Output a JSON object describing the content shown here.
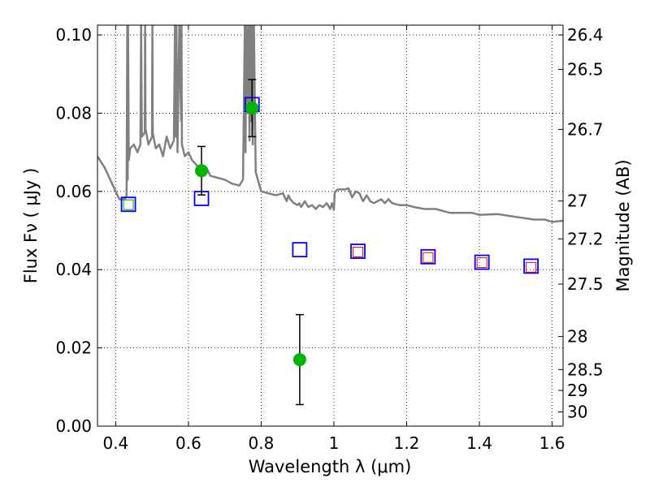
{
  "chart_data": {
    "type": "scatter",
    "xlabel": "Wavelength  λ (μm)",
    "ylabel": "Flux  Fν  ( μJy )",
    "y2label": "Magnitude (AB)",
    "xlim": [
      0.35,
      1.63
    ],
    "ylim": [
      0.0,
      0.1025
    ],
    "grid": true,
    "x_ticks": [
      0.4,
      0.6,
      0.8,
      1.0,
      1.2,
      1.4,
      1.6
    ],
    "x_tick_labels": [
      "0.4",
      "0.6",
      "0.8",
      "1",
      "1.2",
      "1.4",
      "1.6"
    ],
    "y_ticks": [
      0.0,
      0.02,
      0.04,
      0.06,
      0.08,
      0.1
    ],
    "y_tick_labels": [
      "0.00",
      "0.02",
      "0.04",
      "0.06",
      "0.08",
      "0.10"
    ],
    "mag_ticks": [
      {
        "label": "26.4",
        "mag": 26.4
      },
      {
        "label": "26.5",
        "mag": 26.5
      },
      {
        "label": "26.7",
        "mag": 26.7
      },
      {
        "label": "27",
        "mag": 27.0
      },
      {
        "label": "27.2",
        "mag": 27.2
      },
      {
        "label": "27.5",
        "mag": 27.5
      },
      {
        "label": "28",
        "mag": 28.0
      },
      {
        "label": "28.5",
        "mag": 28.5
      },
      {
        "label": "29",
        "mag": 29.0
      },
      {
        "label": "30",
        "mag": 30.0
      }
    ],
    "series": [
      {
        "marker": "line",
        "color": "#808080",
        "x": [
          0.35,
          0.37,
          0.39,
          0.41,
          0.425,
          0.43,
          0.432,
          0.433,
          0.434,
          0.436,
          0.44,
          0.45,
          0.46,
          0.468,
          0.47,
          0.472,
          0.48,
          0.481,
          0.482,
          0.49,
          0.5,
          0.501,
          0.502,
          0.51,
          0.52,
          0.53,
          0.54,
          0.55,
          0.56,
          0.563,
          0.565,
          0.567,
          0.57,
          0.575,
          0.58,
          0.581,
          0.582,
          0.59,
          0.6,
          0.61,
          0.62,
          0.63,
          0.64,
          0.65,
          0.66,
          0.68,
          0.7,
          0.72,
          0.74,
          0.75,
          0.755,
          0.757,
          0.759,
          0.762,
          0.765,
          0.768,
          0.77,
          0.772,
          0.775,
          0.777,
          0.78,
          0.785,
          0.8,
          0.82,
          0.84,
          0.86,
          0.87,
          0.875,
          0.88,
          0.89,
          0.9,
          0.905,
          0.91,
          0.92,
          0.93,
          0.94,
          0.95,
          0.96,
          0.97,
          0.98,
          0.99,
          0.995,
          1.0,
          1.002,
          1.005,
          1.01,
          1.02,
          1.03,
          1.04,
          1.05,
          1.06,
          1.07,
          1.08,
          1.09,
          1.1,
          1.11,
          1.12,
          1.13,
          1.14,
          1.15,
          1.16,
          1.18,
          1.2,
          1.22,
          1.25,
          1.28,
          1.3,
          1.32,
          1.35,
          1.38,
          1.4,
          1.45,
          1.5,
          1.55,
          1.58,
          1.6,
          1.63
        ],
        "y": [
          0.069,
          0.066,
          0.062,
          0.058,
          0.058,
          0.059,
          0.1025,
          0.063,
          0.1025,
          0.068,
          0.071,
          0.072,
          0.07,
          0.072,
          0.1025,
          0.074,
          0.075,
          0.1025,
          0.076,
          0.072,
          0.074,
          0.1025,
          0.075,
          0.071,
          0.072,
          0.069,
          0.074,
          0.071,
          0.073,
          0.1025,
          0.074,
          0.1025,
          0.07,
          0.1025,
          0.078,
          0.1025,
          0.072,
          0.069,
          0.07,
          0.068,
          0.067,
          0.066,
          0.065,
          0.066,
          0.064,
          0.0635,
          0.063,
          0.062,
          0.0615,
          0.063,
          0.1025,
          0.07,
          0.1025,
          0.08,
          0.1025,
          0.073,
          0.1025,
          0.078,
          0.1025,
          0.072,
          0.1025,
          0.065,
          0.06,
          0.0595,
          0.059,
          0.0595,
          0.0575,
          0.059,
          0.058,
          0.057,
          0.0565,
          0.057,
          0.056,
          0.0575,
          0.056,
          0.0565,
          0.0555,
          0.0565,
          0.056,
          0.057,
          0.0555,
          0.057,
          0.0553,
          0.0595,
          0.06,
          0.0605,
          0.0605,
          0.0605,
          0.0608,
          0.0585,
          0.06,
          0.0595,
          0.0575,
          0.059,
          0.0575,
          0.057,
          0.0575,
          0.058,
          0.057,
          0.058,
          0.057,
          0.0565,
          0.0565,
          0.056,
          0.0555,
          0.0555,
          0.055,
          0.0545,
          0.0545,
          0.0545,
          0.054,
          0.0542,
          0.0535,
          0.0528,
          0.0528,
          0.0522,
          0.0525
        ]
      },
      {
        "marker": "square",
        "color": "#0000ff",
        "x": [
          0.435,
          0.636,
          0.775,
          0.906,
          1.066,
          1.259,
          1.407,
          1.542
        ],
        "y": [
          0.0567,
          0.0582,
          0.0822,
          0.0451,
          0.0447,
          0.0433,
          0.0419,
          0.0409
        ]
      },
      {
        "marker": "small-square",
        "color": "#ff0000",
        "x": [
          1.066,
          1.259,
          1.407,
          1.542
        ],
        "y": [
          0.0445,
          0.0431,
          0.0418,
          0.0406
        ]
      },
      {
        "marker": "small-square",
        "color": "#00aa00",
        "x": [
          0.435
        ],
        "y": [
          0.0566
        ]
      },
      {
        "marker": "circle",
        "color": "#00b400",
        "x": [
          0.636,
          0.775,
          0.906
        ],
        "y": [
          0.0653,
          0.0813,
          0.017
        ],
        "yerr": [
          0.0062,
          0.0073,
          0.0115
        ]
      }
    ]
  }
}
